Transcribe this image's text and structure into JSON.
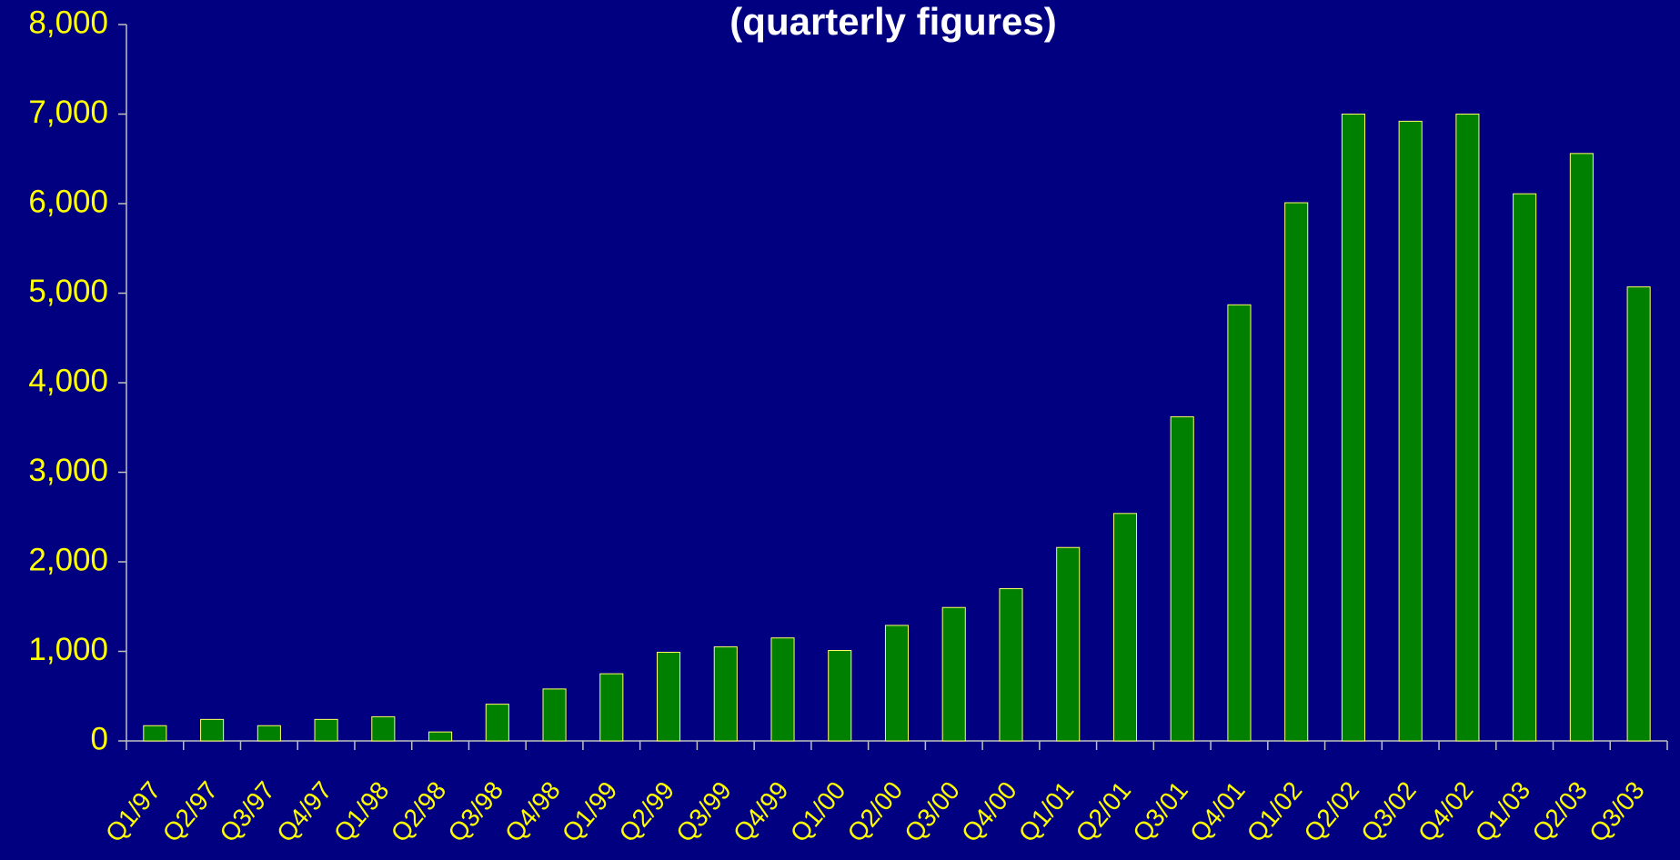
{
  "chart_data": {
    "type": "bar",
    "title": "(quarterly figures)",
    "categories": [
      "Q1/97",
      "Q2/97",
      "Q3/97",
      "Q4/97",
      "Q1/98",
      "Q2/98",
      "Q3/98",
      "Q4/98",
      "Q1/99",
      "Q2/99",
      "Q3/99",
      "Q4/99",
      "Q1/00",
      "Q2/00",
      "Q3/00",
      "Q4/00",
      "Q1/01",
      "Q2/01",
      "Q3/01",
      "Q4/01",
      "Q1/02",
      "Q2/02",
      "Q3/02",
      "Q4/02",
      "Q1/03",
      "Q2/03",
      "Q3/03"
    ],
    "values": [
      170,
      240,
      170,
      240,
      270,
      100,
      410,
      580,
      750,
      990,
      1050,
      1150,
      1010,
      1290,
      1490,
      1700,
      2160,
      2540,
      3620,
      4870,
      6010,
      7000,
      6920,
      7000,
      6110,
      6560,
      5070
    ],
    "color": "#008000",
    "ylim": [
      0,
      8000
    ],
    "yticks": [
      0,
      {
        "value": 1000,
        "label": "1,000"
      },
      {
        "value": 2000,
        "label": "2,000"
      },
      {
        "value": 3000,
        "label": "3,000"
      },
      {
        "value": 4000,
        "label": "4,000"
      },
      {
        "value": 5000,
        "label": "5,000"
      },
      {
        "value": 6000,
        "label": "6,000"
      },
      {
        "value": 7000,
        "label": "7,000"
      },
      {
        "value": 8000,
        "label": "8,000"
      }
    ],
    "grid": false
  }
}
